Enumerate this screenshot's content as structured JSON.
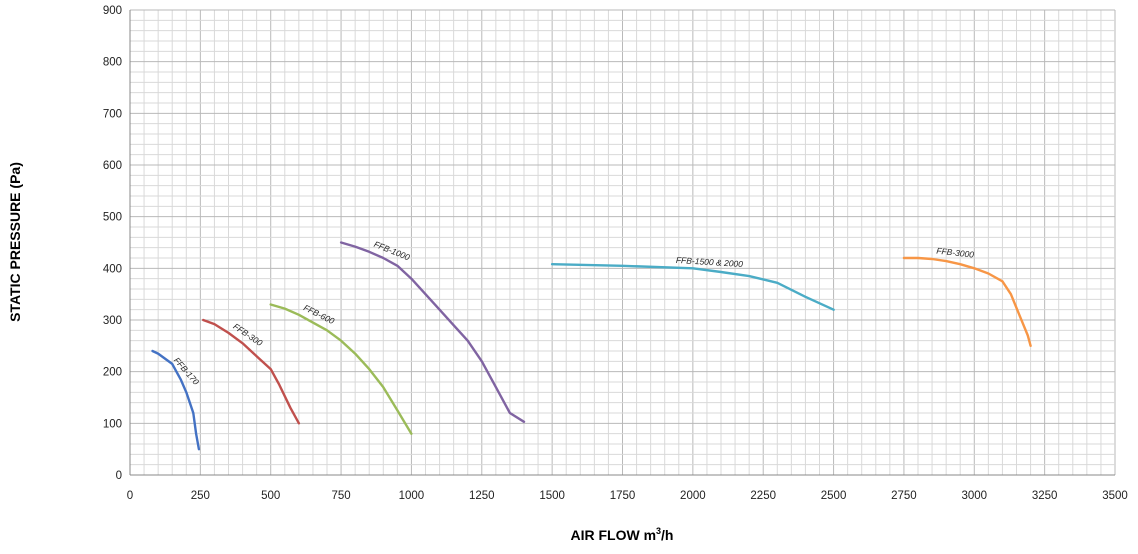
{
  "chart_data": {
    "type": "line",
    "title": "",
    "xlabel": "AIR FLOW m",
    "xlabel_sup": "3",
    "xlabel_suffix": "/h",
    "ylabel": "STATIC PRESSURE (Pa)",
    "xlim": [
      0,
      3500
    ],
    "ylim": [
      0,
      900
    ],
    "xticks": [
      0,
      250,
      500,
      750,
      1000,
      1250,
      1500,
      1750,
      2000,
      2250,
      2500,
      2750,
      3000,
      3250,
      3500
    ],
    "yticks": [
      0,
      100,
      200,
      300,
      400,
      500,
      600,
      700,
      800,
      900
    ],
    "grid": true,
    "minor_gridlines_per_major": 5,
    "legend": "none (inline series labels)",
    "series": [
      {
        "name": "FFB-170",
        "color": "#4472c4",
        "points": [
          [
            80,
            240
          ],
          [
            100,
            235
          ],
          [
            150,
            215
          ],
          [
            180,
            185
          ],
          [
            200,
            160
          ],
          [
            225,
            120
          ],
          [
            235,
            80
          ],
          [
            245,
            50
          ]
        ]
      },
      {
        "name": "FFB-300",
        "color": "#c0504d",
        "points": [
          [
            260,
            300
          ],
          [
            300,
            292
          ],
          [
            350,
            275
          ],
          [
            400,
            255
          ],
          [
            450,
            230
          ],
          [
            500,
            205
          ],
          [
            530,
            175
          ],
          [
            570,
            130
          ],
          [
            600,
            100
          ]
        ]
      },
      {
        "name": "FFB-600",
        "color": "#9bbb59",
        "points": [
          [
            500,
            330
          ],
          [
            550,
            322
          ],
          [
            600,
            310
          ],
          [
            650,
            295
          ],
          [
            700,
            280
          ],
          [
            750,
            260
          ],
          [
            800,
            235
          ],
          [
            850,
            205
          ],
          [
            900,
            170
          ],
          [
            950,
            125
          ],
          [
            1000,
            80
          ]
        ]
      },
      {
        "name": "FFB-1000",
        "color": "#8064a2",
        "points": [
          [
            750,
            450
          ],
          [
            800,
            442
          ],
          [
            850,
            432
          ],
          [
            900,
            420
          ],
          [
            950,
            405
          ],
          [
            1000,
            380
          ],
          [
            1050,
            350
          ],
          [
            1100,
            320
          ],
          [
            1150,
            290
          ],
          [
            1200,
            260
          ],
          [
            1250,
            220
          ],
          [
            1300,
            170
          ],
          [
            1350,
            120
          ],
          [
            1400,
            103
          ]
        ]
      },
      {
        "name": "FFB-1500 & 2000",
        "color": "#4bacc6",
        "points": [
          [
            1500,
            408
          ],
          [
            1750,
            405
          ],
          [
            2000,
            400
          ],
          [
            2100,
            393
          ],
          [
            2200,
            385
          ],
          [
            2300,
            372
          ],
          [
            2400,
            345
          ],
          [
            2500,
            320
          ]
        ]
      },
      {
        "name": "FFB-3000",
        "color": "#f79646",
        "points": [
          [
            2750,
            420
          ],
          [
            2800,
            420
          ],
          [
            2850,
            418
          ],
          [
            2900,
            414
          ],
          [
            2950,
            408
          ],
          [
            3000,
            400
          ],
          [
            3050,
            390
          ],
          [
            3100,
            375
          ],
          [
            3130,
            350
          ],
          [
            3160,
            310
          ],
          [
            3190,
            270
          ],
          [
            3200,
            250
          ]
        ]
      }
    ]
  }
}
